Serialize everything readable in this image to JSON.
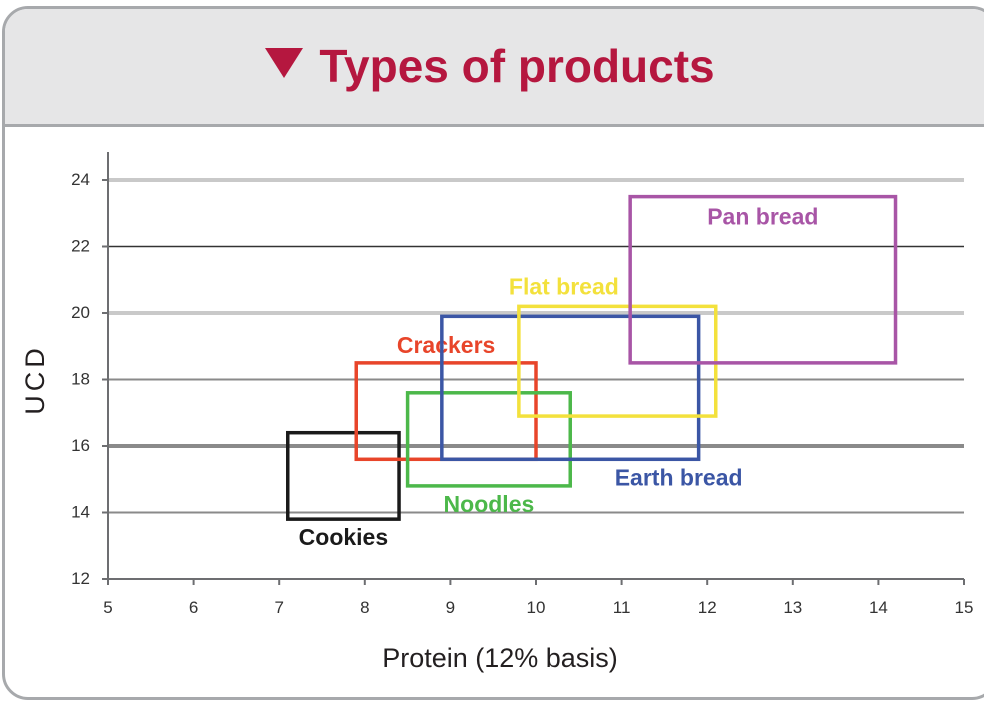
{
  "panel": {
    "title": "Types of products",
    "title_color": "#b5173f"
  },
  "chart_data": {
    "type": "range-boxes",
    "xlabel": "Protein (12% basis)",
    "ylabel": "UCD",
    "xlim": [
      5,
      15
    ],
    "ylim": [
      12,
      24
    ],
    "xticks": [
      "5",
      "6",
      "7",
      "8",
      "9",
      "10",
      "11",
      "12",
      "13",
      "14",
      "15"
    ],
    "yticks": [
      "12",
      "14",
      "16",
      "18",
      "20",
      "22",
      "24"
    ],
    "gridlines": [
      {
        "y": 14,
        "style": "medium"
      },
      {
        "y": 16,
        "style": "heavy"
      },
      {
        "y": 18,
        "style": "medium"
      },
      {
        "y": 20,
        "style": "light"
      },
      {
        "y": 22,
        "style": "dark"
      },
      {
        "y": 24,
        "style": "light"
      }
    ],
    "series": [
      {
        "name": "Cookies",
        "color": "#1a1a1a",
        "x": [
          7.1,
          8.4
        ],
        "y": [
          13.8,
          16.4
        ],
        "label_pos": "below"
      },
      {
        "name": "Crackers",
        "color": "#e8452a",
        "x": [
          7.9,
          10.0
        ],
        "y": [
          15.6,
          18.5
        ],
        "label_pos": "above"
      },
      {
        "name": "Noodles",
        "color": "#4cb84a",
        "x": [
          8.5,
          10.4
        ],
        "y": [
          14.8,
          17.6
        ],
        "label_pos": "below"
      },
      {
        "name": "Earth bread",
        "color": "#3b56a5",
        "x": [
          8.9,
          11.9
        ],
        "y": [
          15.6,
          19.9
        ],
        "label_pos": "below-right"
      },
      {
        "name": "Flat bread",
        "color": "#f3e13c",
        "x": [
          9.8,
          12.1
        ],
        "y": [
          16.9,
          20.2
        ],
        "label_pos": "above-left"
      },
      {
        "name": "Pan bread",
        "color": "#a855a6",
        "x": [
          11.1,
          14.2
        ],
        "y": [
          18.5,
          23.5
        ],
        "label_pos": "inside-top"
      }
    ]
  }
}
